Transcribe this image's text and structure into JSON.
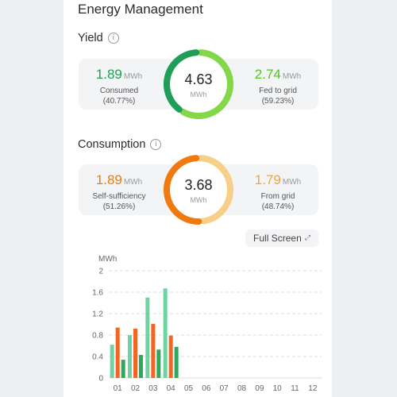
{
  "page_title": "Energy Management",
  "yield": {
    "title": "Yield",
    "info_icon": "info-icon",
    "consumed": {
      "value": "1.89",
      "unit": "MWh",
      "label": "Consumed",
      "percent": "(40.77%)"
    },
    "fed": {
      "value": "2.74",
      "unit": "MWh",
      "label": "Fed to grid",
      "percent": "(59.23%)"
    },
    "total": {
      "value": "4.63",
      "unit": "MWh"
    },
    "ring_fraction_dark": 0.4077,
    "colors": {
      "dark": "#1f9e58",
      "light": "#83d84a"
    }
  },
  "consumption": {
    "title": "Consumption",
    "info_icon": "info-icon",
    "self": {
      "value": "1.89",
      "unit": "MWh",
      "label": "Self-sufficiency",
      "percent": "(51.26%)"
    },
    "grid": {
      "value": "1.79",
      "unit": "MWh",
      "label": "From grid",
      "percent": "(48.74%)"
    },
    "total": {
      "value": "3.68",
      "unit": "MWh"
    },
    "ring_fraction_dark": 0.5126,
    "colors": {
      "dark": "#f07a10",
      "light": "#f6d089"
    }
  },
  "full_screen": {
    "label": "Full Screen",
    "icon": "expand-icon"
  },
  "chart_data": {
    "type": "bar",
    "ylabel": "MWh",
    "ylim": [
      0,
      2
    ],
    "yticks": [
      "0",
      "0.4",
      "0.8",
      "1.2",
      "1.6",
      "2"
    ],
    "categories": [
      "01",
      "02",
      "03",
      "04",
      "05",
      "06",
      "07",
      "08",
      "09",
      "10",
      "11",
      "12"
    ],
    "series": [
      {
        "color": "#6dd3a0",
        "values": [
          0.62,
          0.8,
          1.5,
          1.67,
          null,
          null,
          null,
          null,
          null,
          null,
          null,
          null
        ]
      },
      {
        "color": "#f26522",
        "values": [
          0.94,
          0.92,
          1.01,
          0.79,
          null,
          null,
          null,
          null,
          null,
          null,
          null,
          null
        ]
      },
      {
        "color": "#2fa85a",
        "values": [
          0.34,
          0.43,
          0.53,
          0.58,
          null,
          null,
          null,
          null,
          null,
          null,
          null,
          null
        ]
      }
    ],
    "grid": true
  }
}
